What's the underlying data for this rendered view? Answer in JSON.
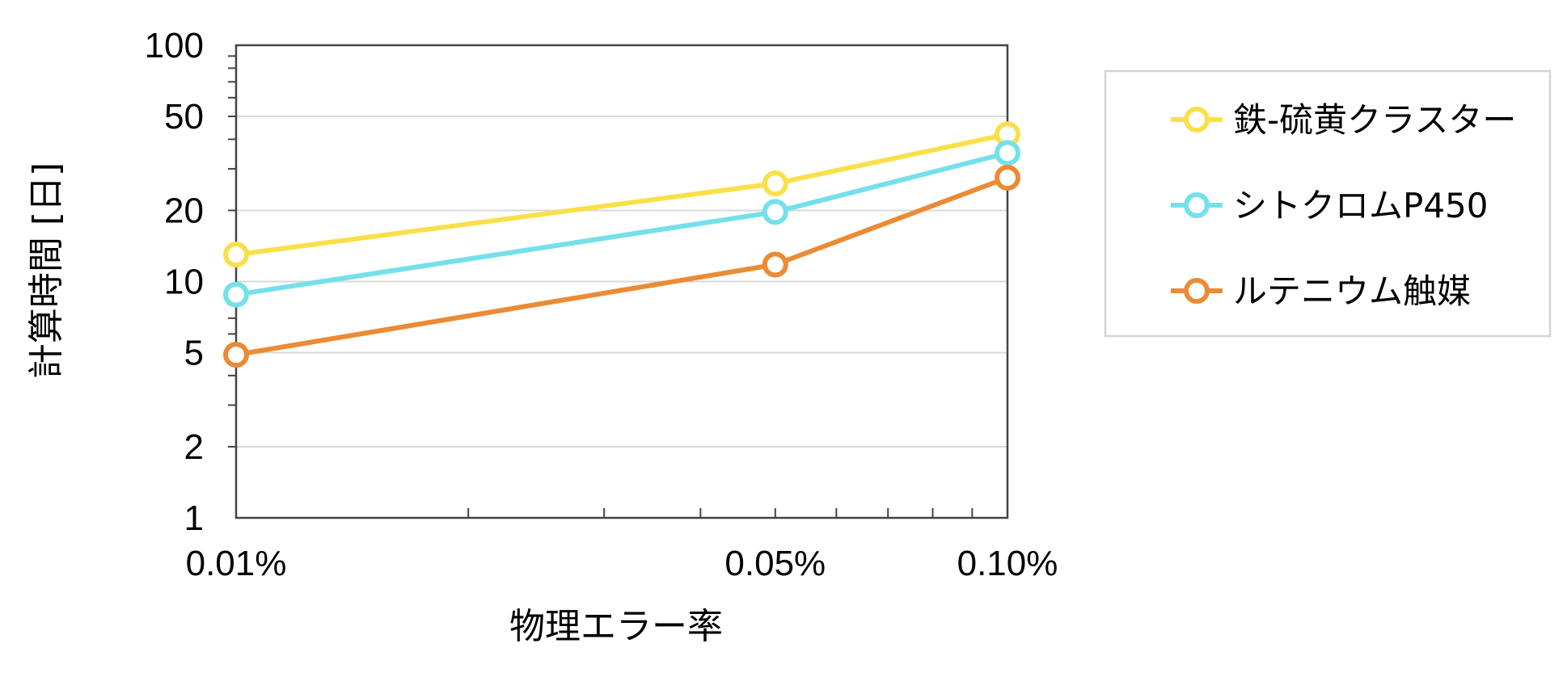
{
  "chart_data": {
    "type": "line",
    "xlabel": "物理エラー率",
    "ylabel": "計算時間 [日]",
    "x_scale": "log",
    "y_scale": "log",
    "xlim": [
      0.01,
      0.1
    ],
    "ylim": [
      1,
      100
    ],
    "x_ticks": [
      {
        "value": 0.01,
        "label": "0.01%"
      },
      {
        "value": 0.05,
        "label": "0.05%"
      },
      {
        "value": 0.1,
        "label": "0.10%"
      }
    ],
    "y_ticks": [
      {
        "value": 1,
        "label": "1"
      },
      {
        "value": 2,
        "label": "2"
      },
      {
        "value": 5,
        "label": "5"
      },
      {
        "value": 10,
        "label": "10"
      },
      {
        "value": 20,
        "label": "20"
      },
      {
        "value": 50,
        "label": "50"
      },
      {
        "value": 100,
        "label": "100"
      }
    ],
    "gridlines": "horizontal",
    "legend_position": "right",
    "x": [
      0.01,
      0.05,
      0.1
    ],
    "series": [
      {
        "name": "鉄-硫黄クラスター",
        "color": "#F9E04B",
        "values": [
          13,
          26,
          42
        ]
      },
      {
        "name": "シトクロムP450",
        "color": "#74E0EA",
        "values": [
          8.8,
          19.7,
          35
        ]
      },
      {
        "name": "ルテニウム触媒",
        "color": "#EB8B34",
        "values": [
          4.9,
          11.8,
          27.5
        ]
      }
    ]
  }
}
